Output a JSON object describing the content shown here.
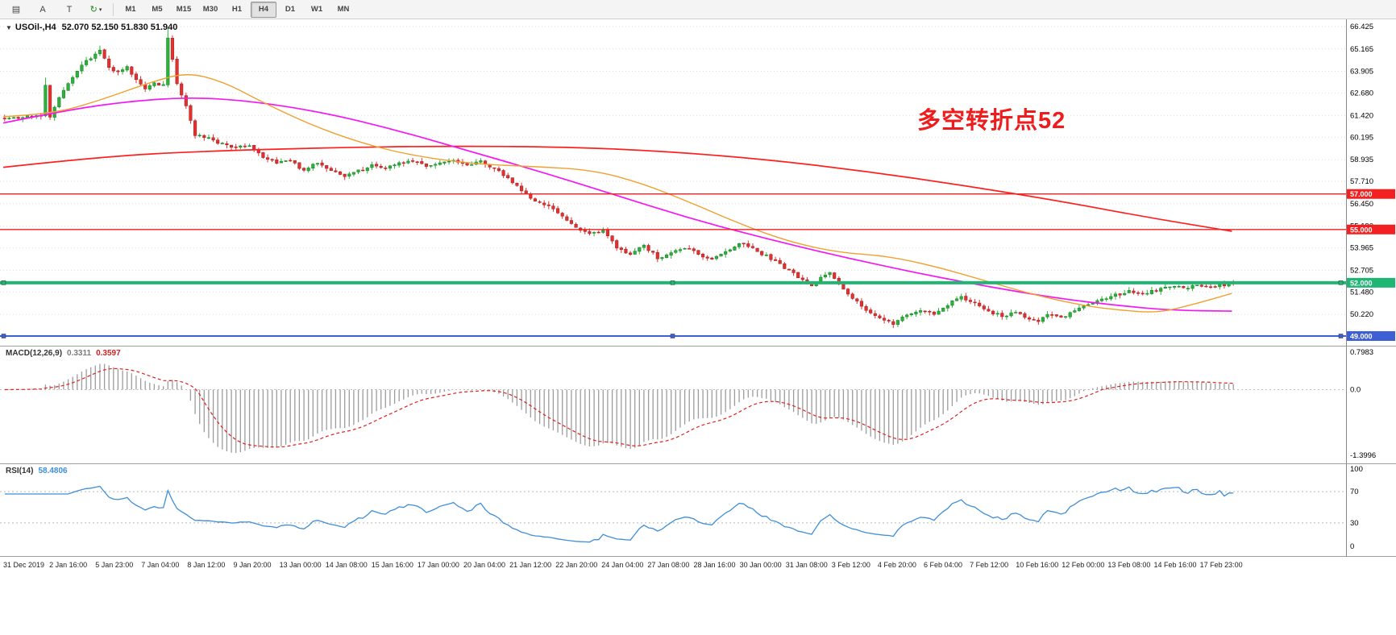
{
  "toolbar": {
    "icon_buttons": [
      {
        "name": "grid-icon",
        "glyph": "▤"
      },
      {
        "name": "letter-a-icon",
        "glyph": "A"
      },
      {
        "name": "letter-t-icon",
        "glyph": "T"
      },
      {
        "name": "refresh-icon",
        "glyph": "↻",
        "caret": true,
        "color": "#1c8a1c"
      }
    ],
    "timeframes": [
      "M1",
      "M5",
      "M15",
      "M30",
      "H1",
      "H4",
      "D1",
      "W1",
      "MN"
    ],
    "active_timeframe": "H4"
  },
  "header": {
    "symbol_dropdown_glyph": "▼",
    "symbol": "USOil-,H4",
    "ohlc": "52.070 52.150 51.830 51.940"
  },
  "annotation": {
    "text": "多空转折点52",
    "color": "#ee1c1c"
  },
  "chart_data": {
    "type": "candlestick",
    "symbol": "USOil-",
    "timeframe": "H4",
    "bars": 272,
    "seed": 7,
    "up_color": "#2eb03c",
    "down_color": "#e23131",
    "grid_color": "#dedede",
    "last_bar": {
      "open": 52.07,
      "high": 52.15,
      "low": 51.83,
      "close": 51.94
    },
    "price_axis": {
      "max": 66.425,
      "min": 49.0,
      "ticks": [
        66.425,
        65.165,
        63.905,
        62.68,
        61.42,
        60.195,
        58.935,
        57.71,
        56.45,
        55.19,
        53.965,
        52.705,
        51.48,
        50.22
      ]
    },
    "price_path": [
      [
        0,
        61.3
      ],
      [
        3,
        61.25
      ],
      [
        6,
        61.4
      ],
      [
        8,
        61.3
      ],
      [
        9,
        63.2
      ],
      [
        10,
        61.4
      ],
      [
        11,
        61.9
      ],
      [
        13,
        62.9
      ],
      [
        15,
        63.5
      ],
      [
        17,
        64.2
      ],
      [
        19,
        64.7
      ],
      [
        21,
        65.05
      ],
      [
        23,
        64.2
      ],
      [
        25,
        63.8
      ],
      [
        27,
        64.1
      ],
      [
        29,
        63.4
      ],
      [
        31,
        62.9
      ],
      [
        33,
        63.3
      ],
      [
        35,
        63.1
      ],
      [
        36,
        65.8
      ],
      [
        37,
        64.6
      ],
      [
        38,
        63.2
      ],
      [
        40,
        62.0
      ],
      [
        42,
        60.3
      ],
      [
        45,
        60.1
      ],
      [
        48,
        59.8
      ],
      [
        51,
        59.6
      ],
      [
        54,
        59.7
      ],
      [
        57,
        59.1
      ],
      [
        60,
        58.7
      ],
      [
        63,
        58.9
      ],
      [
        66,
        58.3
      ],
      [
        69,
        58.8
      ],
      [
        72,
        58.35
      ],
      [
        75,
        58.05
      ],
      [
        78,
        58.3
      ],
      [
        81,
        58.6
      ],
      [
        84,
        58.45
      ],
      [
        87,
        58.75
      ],
      [
        90,
        58.9
      ],
      [
        93,
        58.6
      ],
      [
        96,
        58.75
      ],
      [
        99,
        58.85
      ],
      [
        102,
        58.6
      ],
      [
        105,
        58.9
      ],
      [
        108,
        58.4
      ],
      [
        111,
        57.9
      ],
      [
        114,
        57.2
      ],
      [
        117,
        56.6
      ],
      [
        120,
        56.3
      ],
      [
        123,
        55.7
      ],
      [
        126,
        55.1
      ],
      [
        129,
        54.7
      ],
      [
        132,
        54.9
      ],
      [
        135,
        54.0
      ],
      [
        138,
        53.6
      ],
      [
        141,
        54.1
      ],
      [
        144,
        53.4
      ],
      [
        147,
        53.7
      ],
      [
        150,
        54.0
      ],
      [
        153,
        53.6
      ],
      [
        156,
        53.3
      ],
      [
        159,
        53.7
      ],
      [
        162,
        54.2
      ],
      [
        165,
        53.9
      ],
      [
        168,
        53.5
      ],
      [
        171,
        53.0
      ],
      [
        174,
        52.5
      ],
      [
        176,
        52.1
      ],
      [
        178,
        51.8
      ],
      [
        180,
        52.3
      ],
      [
        182,
        52.6
      ],
      [
        184,
        52.0
      ],
      [
        186,
        51.4
      ],
      [
        188,
        50.9
      ],
      [
        190,
        50.4
      ],
      [
        192,
        50.1
      ],
      [
        194,
        49.9
      ],
      [
        196,
        49.7
      ],
      [
        198,
        50.0
      ],
      [
        200,
        50.3
      ],
      [
        202,
        50.5
      ],
      [
        205,
        50.2
      ],
      [
        208,
        50.8
      ],
      [
        211,
        51.15
      ],
      [
        214,
        50.8
      ],
      [
        217,
        50.4
      ],
      [
        220,
        50.1
      ],
      [
        223,
        50.35
      ],
      [
        226,
        50.0
      ],
      [
        228,
        49.85
      ],
      [
        230,
        50.25
      ],
      [
        233,
        50.0
      ],
      [
        236,
        50.4
      ],
      [
        239,
        50.8
      ],
      [
        242,
        51.05
      ],
      [
        245,
        51.3
      ],
      [
        248,
        51.5
      ],
      [
        251,
        51.35
      ],
      [
        254,
        51.6
      ],
      [
        257,
        51.8
      ],
      [
        260,
        51.7
      ],
      [
        263,
        51.85
      ],
      [
        266,
        51.8
      ],
      [
        269,
        51.9
      ],
      [
        271,
        51.94
      ]
    ],
    "wick_spikes": [
      {
        "bar": 36,
        "high": 66.35
      },
      {
        "bar": 21,
        "high": 65.35
      },
      {
        "bar": 9,
        "high": 63.55
      },
      {
        "bar": 196,
        "low": 49.45
      }
    ],
    "moving_averages": [
      {
        "name": "ma-slow-red",
        "color": "#ff1f1f",
        "width": 1.7,
        "points": [
          [
            0,
            58.5
          ],
          [
            0.08,
            59.1
          ],
          [
            0.16,
            59.4
          ],
          [
            0.26,
            59.6
          ],
          [
            0.36,
            59.7
          ],
          [
            0.46,
            59.65
          ],
          [
            0.54,
            59.4
          ],
          [
            0.62,
            58.95
          ],
          [
            0.7,
            58.3
          ],
          [
            0.78,
            57.5
          ],
          [
            0.86,
            56.6
          ],
          [
            0.93,
            55.7
          ],
          [
            1,
            54.9
          ]
        ]
      },
      {
        "name": "ma-mid-magenta",
        "color": "#f318f3",
        "width": 1.7,
        "points": [
          [
            0,
            61.0
          ],
          [
            0.05,
            61.7
          ],
          [
            0.1,
            62.2
          ],
          [
            0.15,
            62.45
          ],
          [
            0.2,
            62.25
          ],
          [
            0.26,
            61.6
          ],
          [
            0.32,
            60.6
          ],
          [
            0.38,
            59.4
          ],
          [
            0.44,
            58.2
          ],
          [
            0.5,
            56.9
          ],
          [
            0.56,
            55.6
          ],
          [
            0.62,
            54.5
          ],
          [
            0.68,
            53.5
          ],
          [
            0.74,
            52.6
          ],
          [
            0.8,
            51.8
          ],
          [
            0.86,
            51.1
          ],
          [
            0.91,
            50.7
          ],
          [
            0.95,
            50.45
          ],
          [
            1,
            50.4
          ]
        ]
      },
      {
        "name": "ma-fast-orange",
        "color": "#f0a030",
        "width": 1.4,
        "points": [
          [
            0,
            61.35
          ],
          [
            0.04,
            61.5
          ],
          [
            0.08,
            62.3
          ],
          [
            0.12,
            63.3
          ],
          [
            0.15,
            63.85
          ],
          [
            0.18,
            63.3
          ],
          [
            0.21,
            62.2
          ],
          [
            0.25,
            60.9
          ],
          [
            0.29,
            59.9
          ],
          [
            0.33,
            59.2
          ],
          [
            0.38,
            58.7
          ],
          [
            0.43,
            58.55
          ],
          [
            0.48,
            58.35
          ],
          [
            0.52,
            57.6
          ],
          [
            0.56,
            56.5
          ],
          [
            0.6,
            55.3
          ],
          [
            0.64,
            54.3
          ],
          [
            0.68,
            53.7
          ],
          [
            0.72,
            53.5
          ],
          [
            0.76,
            52.9
          ],
          [
            0.8,
            52.1
          ],
          [
            0.84,
            51.3
          ],
          [
            0.88,
            50.7
          ],
          [
            0.91,
            50.45
          ],
          [
            0.94,
            50.3
          ],
          [
            0.97,
            50.8
          ],
          [
            1,
            51.4
          ]
        ]
      }
    ],
    "hlines": [
      {
        "price": 57.0,
        "label": "57.000",
        "color": "#f22020",
        "width": 1.4,
        "handles": false
      },
      {
        "price": 55.0,
        "label": "55.000",
        "color": "#f22020",
        "width": 1.4,
        "handles": false
      },
      {
        "price": 52.0,
        "label": "52.000",
        "color": "#1fb673",
        "width": 4,
        "handles": true
      },
      {
        "price": 49.0,
        "label": "49.000",
        "color": "#3d5fd6",
        "width": 2,
        "handles": true
      }
    ],
    "x_labels": [
      "31 Dec 2019",
      "2 Jan 16:00",
      "5 Jan 23:00",
      "7 Jan 04:00",
      "8 Jan 12:00",
      "9 Jan 20:00",
      "13 Jan 00:00",
      "14 Jan 08:00",
      "15 Jan 16:00",
      "17 Jan 00:00",
      "20 Jan 04:00",
      "21 Jan 12:00",
      "22 Jan 20:00",
      "24 Jan 04:00",
      "27 Jan 08:00",
      "28 Jan 16:00",
      "30 Jan 00:00",
      "31 Jan 08:00",
      "3 Feb 12:00",
      "4 Feb 20:00",
      "6 Feb 04:00",
      "7 Feb 12:00",
      "10 Feb 16:00",
      "12 Feb 00:00",
      "13 Feb 08:00",
      "14 Feb 16:00",
      "17 Feb 23:00"
    ],
    "indicators": {
      "macd": {
        "label": "MACD(12,26,9)",
        "values": [
          "0.3311",
          "0.3597"
        ],
        "params": {
          "fast": 12,
          "slow": 26,
          "signal": 9
        },
        "axis_labels": [
          "0.7983",
          "0.0",
          "-1.3996"
        ],
        "ylim": [
          -1.3996,
          0.7983
        ],
        "hist_color": "#9c9c9c",
        "signal_color": "#e02020",
        "scale_to": {
          "max": 0.55,
          "min": -1.35
        }
      },
      "rsi": {
        "label": "RSI(14)",
        "value": "58.4806",
        "period": 14,
        "axis_labels": [
          "100",
          "70",
          "30",
          "0"
        ],
        "levels": [
          70,
          30
        ],
        "ylim": [
          0,
          100
        ],
        "line_color": "#3f8fd8"
      }
    }
  }
}
